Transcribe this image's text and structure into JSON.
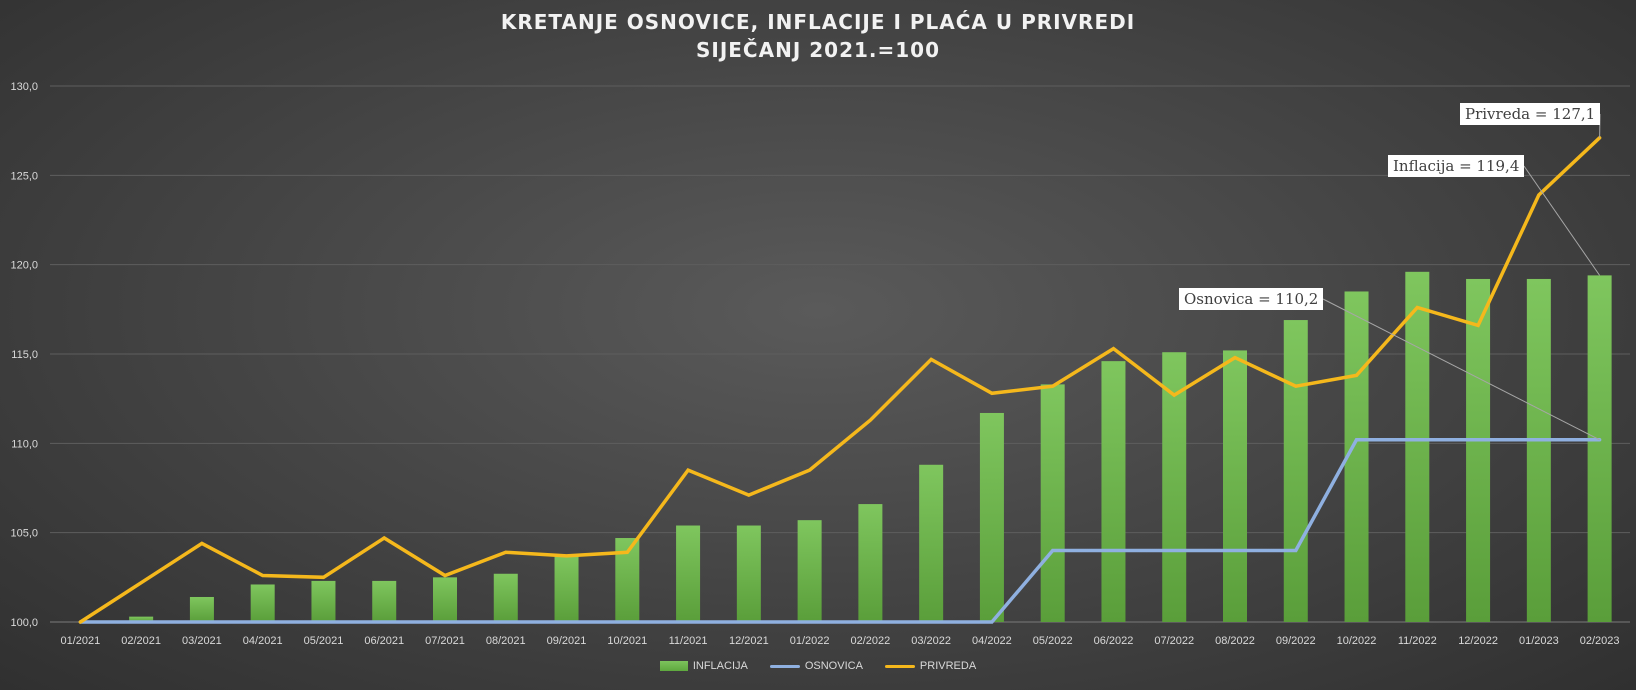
{
  "chart_data": {
    "type": "bar",
    "title": "KRETANJE OSNOVICE, INFLACIJE I PLAĆA U PRIVREDI",
    "subtitle": "SIJEČANJ 2021.=100",
    "categories": [
      "01/2021",
      "02/2021",
      "03/2021",
      "04/2021",
      "05/2021",
      "06/2021",
      "07/2021",
      "08/2021",
      "09/2021",
      "10/2021",
      "11/2021",
      "12/2021",
      "01/2022",
      "02/2022",
      "03/2022",
      "04/2022",
      "05/2022",
      "06/2022",
      "07/2022",
      "08/2022",
      "09/2022",
      "10/2022",
      "11/2022",
      "12/2022",
      "01/2023",
      "02/2023"
    ],
    "ylim": [
      100,
      130
    ],
    "yticks": [
      "100,0",
      "105,0",
      "110,0",
      "115,0",
      "120,0",
      "125,0",
      "130,0"
    ],
    "grid": true,
    "legend_position": "bottom",
    "series": [
      {
        "name": "INFLACIJA",
        "type": "bar",
        "color": "#70b84e",
        "values": [
          100.0,
          100.3,
          101.4,
          102.1,
          102.3,
          102.3,
          102.5,
          102.7,
          103.7,
          104.7,
          105.4,
          105.4,
          105.7,
          106.6,
          108.8,
          111.7,
          113.3,
          114.6,
          115.1,
          115.2,
          116.9,
          118.5,
          119.6,
          119.2,
          119.2,
          119.4
        ]
      },
      {
        "name": "OSNOVICA",
        "type": "line",
        "color": "#8fb0e0",
        "values": [
          100.0,
          100.0,
          100.0,
          100.0,
          100.0,
          100.0,
          100.0,
          100.0,
          100.0,
          100.0,
          100.0,
          100.0,
          100.0,
          100.0,
          100.0,
          100.0,
          104.0,
          104.0,
          104.0,
          104.0,
          104.0,
          110.2,
          110.2,
          110.2,
          110.2,
          110.2
        ]
      },
      {
        "name": "PRIVREDA",
        "type": "line",
        "color": "#f5b81c",
        "values": [
          100.0,
          102.2,
          104.4,
          102.6,
          102.5,
          104.7,
          102.6,
          103.9,
          103.7,
          103.9,
          108.5,
          107.1,
          108.5,
          111.3,
          114.7,
          112.8,
          113.2,
          115.3,
          112.7,
          114.8,
          113.2,
          113.8,
          117.6,
          116.6,
          123.9,
          127.1
        ]
      }
    ],
    "annotations": [
      {
        "label": "Privreda = 127,1",
        "series": "PRIVREDA"
      },
      {
        "label": "Inflacija = 119,4",
        "series": "INFLACIJA"
      },
      {
        "label": "Osnovica = 110,2",
        "series": "OSNOVICA"
      }
    ]
  }
}
